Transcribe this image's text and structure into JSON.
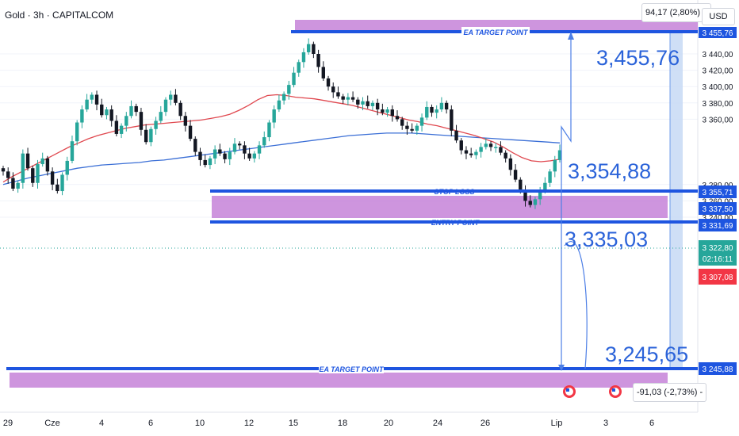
{
  "header": {
    "title": "Gold · 3h · CAPITALCOM",
    "currency_button": "USD",
    "measure_top": "94,17 (2,80%) 9",
    "measure_bottom": "-91,03 (-2,73%) -"
  },
  "colors": {
    "up_candle": "#26a69a",
    "down_candle": "#131722",
    "ema_fast": "#e0484f",
    "ema_slow": "#3b6fd6",
    "level_line": "#1e55e0",
    "zone": "#c27ad6",
    "projection_band": "#c7d9f5",
    "price_tag": "#26a69a",
    "low_tag": "#f23645"
  },
  "chart_data": {
    "type": "candlestick",
    "y_axis": {
      "ticks": [
        "3 440,00",
        "3 420,00",
        "3 400,00",
        "3 380,00",
        "3 360,00",
        "3 280,00",
        "3 260,00",
        "3 240,00"
      ],
      "tick_values": [
        3440,
        3420,
        3400,
        3380,
        3360,
        3280,
        3260,
        3240
      ]
    },
    "x_axis": {
      "ticks": [
        "29",
        "Cze",
        "4",
        "6",
        "10",
        "12",
        "15",
        "18",
        "20",
        "24",
        "26",
        "Lip",
        "3",
        "6"
      ]
    },
    "levels": [
      {
        "name": "EA TARGET POINT",
        "value": 3455.76,
        "tag": "3 455,76"
      },
      {
        "name": "STOP LOSS",
        "value": 3355.71,
        "tag": "3 355,71"
      },
      {
        "name": "ENTRY POINT",
        "value": 3331.69,
        "tag": "3 331,69"
      },
      {
        "name": "EA TARGET POINT",
        "value": 3245.88,
        "tag": "3 245,88"
      }
    ],
    "zone_tag": "3 337,50",
    "current_price_tag": "3 322,80",
    "countdown_tag": "02:16:11",
    "low_tag": "3 307,08",
    "big_labels": [
      "3,455,76",
      "3,354,88",
      "3,335,03",
      "3,245,65"
    ],
    "closes": [
      3296,
      3288,
      3275,
      3282,
      3318,
      3300,
      3282,
      3305,
      3312,
      3296,
      3280,
      3272,
      3292,
      3309,
      3333,
      3356,
      3372,
      3384,
      3390,
      3378,
      3365,
      3372,
      3358,
      3342,
      3352,
      3364,
      3376,
      3369,
      3347,
      3332,
      3348,
      3358,
      3369,
      3384,
      3390,
      3380,
      3364,
      3352,
      3336,
      3320,
      3310,
      3304,
      3312,
      3323,
      3318,
      3311,
      3320,
      3330,
      3328,
      3318,
      3312,
      3318,
      3328,
      3338,
      3356,
      3372,
      3383,
      3391,
      3402,
      3417,
      3430,
      3442,
      3452,
      3440,
      3424,
      3410,
      3400,
      3393,
      3388,
      3384,
      3387,
      3384,
      3378,
      3382,
      3376,
      3380,
      3372,
      3368,
      3372,
      3364,
      3360,
      3352,
      3348,
      3346,
      3352,
      3362,
      3375,
      3368,
      3372,
      3380,
      3372,
      3346,
      3334,
      3322,
      3318,
      3316,
      3320,
      3326,
      3330,
      3326,
      3326,
      3319,
      3312,
      3298,
      3286,
      3274,
      3260,
      3255,
      3262,
      3272,
      3282,
      3296,
      3310,
      3322
    ],
    "ema_fast": [
      3283,
      3290,
      3296,
      3302,
      3308,
      3314,
      3320,
      3326,
      3331,
      3336,
      3340,
      3343,
      3346,
      3349,
      3351,
      3353,
      3354,
      3355,
      3356,
      3357,
      3358,
      3359,
      3361,
      3363,
      3366,
      3371,
      3377,
      3384,
      3389,
      3390,
      3389,
      3387,
      3386,
      3385,
      3383,
      3381,
      3379,
      3377,
      3374,
      3371,
      3368,
      3365,
      3362,
      3359,
      3357,
      3354,
      3352,
      3349,
      3346,
      3343,
      3340,
      3336,
      3332,
      3326,
      3319,
      3313,
      3309,
      3308,
      3309,
      3311
    ],
    "ema_slow": [
      3280,
      3284,
      3288,
      3291,
      3294,
      3297,
      3300,
      3302,
      3304,
      3305,
      3306,
      3307,
      3309,
      3310,
      3312,
      3314,
      3316,
      3318,
      3320,
      3322,
      3324,
      3326,
      3328,
      3330,
      3332,
      3334,
      3336,
      3338,
      3340,
      3341,
      3342,
      3343,
      3343,
      3343,
      3342,
      3341,
      3340,
      3339,
      3338,
      3337,
      3336,
      3335,
      3334,
      3333,
      3332,
      3331
    ]
  }
}
